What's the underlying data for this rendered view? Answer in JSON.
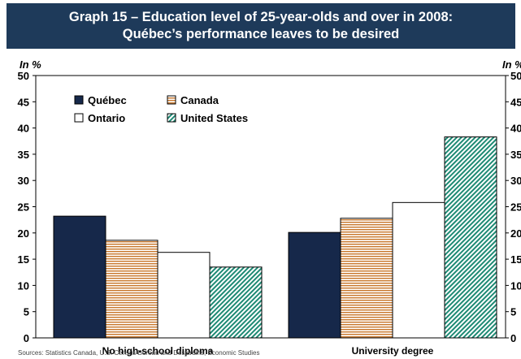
{
  "chart_data": {
    "type": "bar",
    "title_line1": "Graph 15 – Education level of 25-year-olds and over in 2008:",
    "title_line2": "Québec’s performance leaves to be desired",
    "ylabel_left": "In %",
    "ylabel_right": "In %",
    "ylim": [
      0,
      50
    ],
    "yticks": [
      "0",
      "5",
      "10",
      "15",
      "20",
      "25",
      "30",
      "35",
      "40",
      "45",
      "50"
    ],
    "categories": [
      "No high-school diploma",
      "University degree"
    ],
    "series": [
      {
        "name": "Québec",
        "values": [
          23.2,
          20.1
        ],
        "color": "#16284a",
        "pattern": "solid"
      },
      {
        "name": "Canada",
        "values": [
          18.6,
          22.8
        ],
        "color": "#c8762a",
        "pattern": "horizontal-lines"
      },
      {
        "name": "Ontario",
        "values": [
          16.3,
          25.8
        ],
        "color": "#ffffff",
        "pattern": "white"
      },
      {
        "name": "United States",
        "values": [
          13.5,
          38.3
        ],
        "color": "#1e8a74",
        "pattern": "diagonal-lines"
      }
    ],
    "grid": false,
    "legend_position": "top-left",
    "source": "Sources: Statistics Canada, U.S. Census Bureau and Desjardins, Economic Studies"
  }
}
